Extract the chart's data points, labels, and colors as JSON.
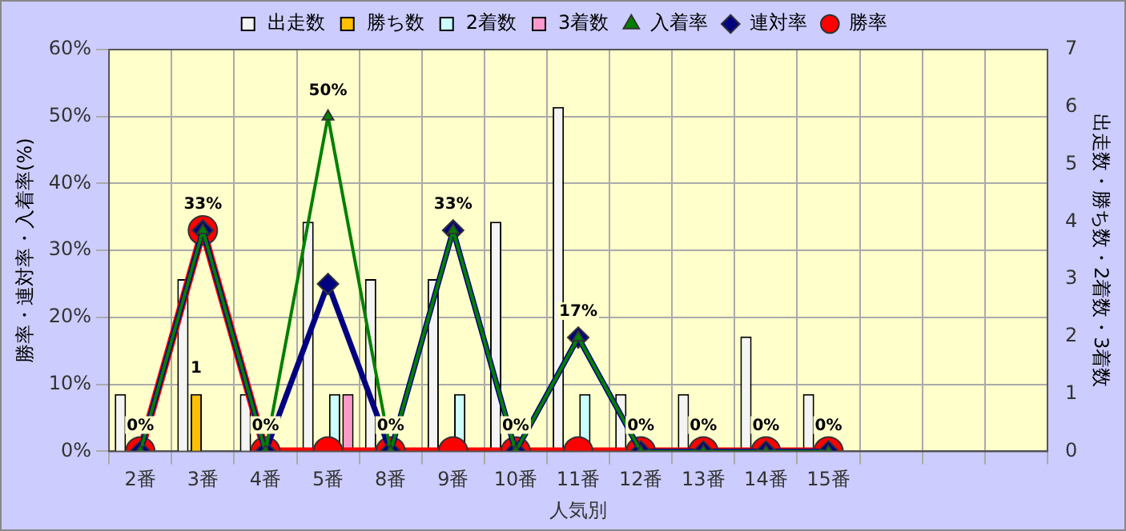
{
  "chart_data": {
    "type": "bar",
    "xlabel": "人気別",
    "ylabel": "勝率・連対率・入着率(%)",
    "y2label": "出走数・勝ち数・2着数・3着数",
    "categories": [
      "2番",
      "3番",
      "4番",
      "5番",
      "8番",
      "9番",
      "10番",
      "11番",
      "12番",
      "13番",
      "14番",
      "15番",
      null,
      null,
      null
    ],
    "ylim": [
      0,
      60
    ],
    "yticks": [
      {
        "value": 0,
        "label": "0%"
      },
      {
        "value": 10,
        "label": "10%"
      },
      {
        "value": 20,
        "label": "20%"
      },
      {
        "value": 30,
        "label": "30%"
      },
      {
        "value": 40,
        "label": "40%"
      },
      {
        "value": 50,
        "label": "50%"
      },
      {
        "value": 60,
        "label": "60%"
      }
    ],
    "y2lim": [
      0,
      7
    ],
    "y2ticks": [
      0,
      1,
      2,
      3,
      4,
      5,
      6,
      7
    ],
    "grid": true,
    "legend": "top",
    "series": [
      {
        "name": "出走数",
        "axis": "y2",
        "color": "#f4f4f4",
        "values": [
          1,
          3,
          1,
          4,
          3,
          3,
          4,
          6,
          1,
          1,
          2,
          1,
          null,
          null,
          null
        ]
      },
      {
        "name": "勝ち数",
        "axis": "y2",
        "color": "#ffc000",
        "values": [
          0,
          1,
          0,
          0,
          0,
          0,
          0,
          0,
          0,
          0,
          0,
          0,
          null,
          null,
          null
        ],
        "value_labels": [
          null,
          "1",
          null,
          null,
          null,
          null,
          null,
          null,
          null,
          null,
          null,
          null,
          null,
          null,
          null
        ]
      },
      {
        "name": "2着数",
        "axis": "y2",
        "color": "#ccffff",
        "values": [
          0,
          0,
          0,
          1,
          0,
          1,
          0,
          1,
          0,
          0,
          0,
          0,
          null,
          null,
          null
        ]
      },
      {
        "name": "3着数",
        "axis": "y2",
        "color": "#ff99cc",
        "values": [
          0,
          0,
          0,
          1,
          0,
          0,
          0,
          0,
          0,
          0,
          0,
          0,
          null,
          null,
          null
        ]
      },
      {
        "name": "入着率",
        "type": "line",
        "marker": "triangle",
        "color": "#008000",
        "values": [
          0,
          33,
          0,
          50,
          0,
          33,
          0,
          17,
          0,
          0,
          0,
          0,
          null,
          null,
          null
        ],
        "value_labels": [
          "0%",
          "33%",
          "0%",
          "50%",
          "0%",
          "33%",
          "0%",
          "17%",
          "0%",
          "0%",
          "0%",
          "0%",
          null,
          null,
          null
        ]
      },
      {
        "name": "連対率",
        "type": "line",
        "marker": "diamond",
        "color": "#000080",
        "values": [
          0,
          33,
          0,
          25,
          0,
          33,
          0,
          17,
          0,
          0,
          0,
          0,
          null,
          null,
          null
        ]
      },
      {
        "name": "勝率",
        "type": "line",
        "marker": "circle",
        "color": "#ff0000",
        "values": [
          0,
          33,
          0,
          0,
          0,
          0,
          0,
          0,
          0,
          0,
          0,
          0,
          null,
          null,
          null
        ]
      }
    ]
  }
}
